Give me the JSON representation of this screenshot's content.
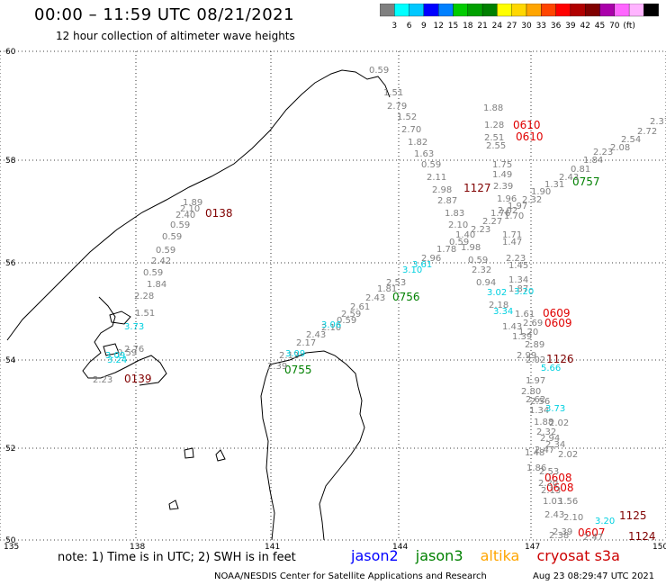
{
  "header": {
    "title": "00:00 – 11:59 UTC 08/21/2021",
    "subtitle": "12 hour collection of altimeter wave heights"
  },
  "colorbar": {
    "colors": [
      "#808080",
      "#00ffff",
      "#00c8ff",
      "#0000ff",
      "#0080ff",
      "#00cc00",
      "#00a000",
      "#008000",
      "#ffff00",
      "#ffd700",
      "#ffa500",
      "#ff4500",
      "#ff0000",
      "#b00000",
      "#800000",
      "#aa00aa",
      "#ff66ff",
      "#ffb4ff",
      "#000000"
    ],
    "labels": [
      "3",
      "6",
      "9",
      "12",
      "15",
      "18",
      "21",
      "24",
      "27",
      "30",
      "33",
      "36",
      "39",
      "42",
      "45",
      "70",
      "(ft)"
    ]
  },
  "map": {
    "lat_labels": [
      "60",
      "58",
      "56",
      "54",
      "52",
      "50"
    ],
    "lon_labels": [
      "135",
      "138",
      "141",
      "144",
      "147",
      "150"
    ],
    "colors": {
      "gray": "#808080",
      "cyan": "#00d0e0",
      "green": "#008000",
      "red": "#e00000",
      "darkred": "#800000"
    },
    "time_labels": [
      {
        "t": "0610",
        "c": "red"
      },
      {
        "t": "0610",
        "c": "red"
      },
      {
        "t": "1127",
        "c": "darkred"
      },
      {
        "t": "0757",
        "c": "green"
      },
      {
        "t": "0138",
        "c": "darkred"
      },
      {
        "t": "0756",
        "c": "green"
      },
      {
        "t": "0609",
        "c": "red"
      },
      {
        "t": "0609",
        "c": "red"
      },
      {
        "t": "1126",
        "c": "darkred"
      },
      {
        "t": "0755",
        "c": "green"
      },
      {
        "t": "0139",
        "c": "darkred"
      },
      {
        "t": "0608",
        "c": "red"
      },
      {
        "t": "0608",
        "c": "red"
      },
      {
        "t": "1125",
        "c": "darkred"
      },
      {
        "t": "0607",
        "c": "red"
      },
      {
        "t": "1124",
        "c": "darkred"
      }
    ],
    "values": [
      {
        "t": "0.59",
        "c": "gray"
      },
      {
        "t": "1.51",
        "c": "gray"
      },
      {
        "t": "2.79",
        "c": "gray"
      },
      {
        "t": "1.52",
        "c": "gray"
      },
      {
        "t": "2.70",
        "c": "gray"
      },
      {
        "t": "1.82",
        "c": "gray"
      },
      {
        "t": "1.63",
        "c": "gray"
      },
      {
        "t": "0.59",
        "c": "gray"
      },
      {
        "t": "2.11",
        "c": "gray"
      },
      {
        "t": "2.98",
        "c": "gray"
      },
      {
        "t": "2.87",
        "c": "gray"
      },
      {
        "t": "1.83",
        "c": "gray"
      },
      {
        "t": "2.10",
        "c": "gray"
      },
      {
        "t": "1.40",
        "c": "gray"
      },
      {
        "t": "0.59",
        "c": "gray"
      },
      {
        "t": "1.98",
        "c": "gray"
      },
      {
        "t": "1.78",
        "c": "gray"
      },
      {
        "t": "2.96",
        "c": "gray"
      },
      {
        "t": "0.59",
        "c": "gray"
      },
      {
        "t": "2.32",
        "c": "gray"
      },
      {
        "t": "0.94",
        "c": "gray"
      },
      {
        "t": "2.18",
        "c": "gray"
      },
      {
        "t": "1.88",
        "c": "gray"
      },
      {
        "t": "1.28",
        "c": "gray"
      },
      {
        "t": "2.51",
        "c": "gray"
      },
      {
        "t": "2.55",
        "c": "gray"
      },
      {
        "t": "1.75",
        "c": "gray"
      },
      {
        "t": "1.49",
        "c": "gray"
      },
      {
        "t": "2.39",
        "c": "gray"
      },
      {
        "t": "1.96",
        "c": "gray"
      },
      {
        "t": "2.02",
        "c": "gray"
      },
      {
        "t": "1.70",
        "c": "gray"
      },
      {
        "t": "1.71",
        "c": "gray"
      },
      {
        "t": "1.47",
        "c": "gray"
      },
      {
        "t": "2.23",
        "c": "gray"
      },
      {
        "t": "1.45",
        "c": "gray"
      },
      {
        "t": "1.34",
        "c": "gray"
      },
      {
        "t": "1.87",
        "c": "gray"
      },
      {
        "t": "1.61",
        "c": "gray"
      },
      {
        "t": "2.69",
        "c": "gray"
      },
      {
        "t": "1.43",
        "c": "gray"
      },
      {
        "t": "1.20",
        "c": "gray"
      },
      {
        "t": "1.39",
        "c": "gray"
      },
      {
        "t": "2.89",
        "c": "gray"
      },
      {
        "t": "2.99",
        "c": "gray"
      },
      {
        "t": "2.02",
        "c": "gray"
      },
      {
        "t": "1.97",
        "c": "gray"
      },
      {
        "t": "2.80",
        "c": "gray"
      },
      {
        "t": "2.62",
        "c": "gray"
      },
      {
        "t": "2.56",
        "c": "gray"
      },
      {
        "t": "1.34",
        "c": "gray"
      },
      {
        "t": "1.88",
        "c": "gray"
      },
      {
        "t": "2.02",
        "c": "gray"
      },
      {
        "t": "2.32",
        "c": "gray"
      },
      {
        "t": "2.94",
        "c": "gray"
      },
      {
        "t": "2.34",
        "c": "gray"
      },
      {
        "t": "2.47",
        "c": "gray"
      },
      {
        "t": "1.48",
        "c": "gray"
      },
      {
        "t": "2.02",
        "c": "gray"
      },
      {
        "t": "1.86",
        "c": "gray"
      },
      {
        "t": "2.53",
        "c": "gray"
      },
      {
        "t": "2.20",
        "c": "gray"
      },
      {
        "t": "2.13",
        "c": "gray"
      },
      {
        "t": "1.03",
        "c": "gray"
      },
      {
        "t": "1.56",
        "c": "gray"
      },
      {
        "t": "2.43",
        "c": "gray"
      },
      {
        "t": "2.10",
        "c": "gray"
      },
      {
        "t": "2.39",
        "c": "gray"
      },
      {
        "t": "2.38",
        "c": "gray"
      },
      {
        "t": "2.47",
        "c": "gray"
      },
      {
        "t": "2.37",
        "c": "gray"
      },
      {
        "t": "2.72",
        "c": "gray"
      },
      {
        "t": "2.54",
        "c": "gray"
      },
      {
        "t": "2.08",
        "c": "gray"
      },
      {
        "t": "2.23",
        "c": "gray"
      },
      {
        "t": "1.84",
        "c": "gray"
      },
      {
        "t": "0.81",
        "c": "gray"
      },
      {
        "t": "2.43",
        "c": "gray"
      },
      {
        "t": "1.31",
        "c": "gray"
      },
      {
        "t": "1.90",
        "c": "gray"
      },
      {
        "t": "2.32",
        "c": "gray"
      },
      {
        "t": "1.97",
        "c": "gray"
      },
      {
        "t": "1.76",
        "c": "gray"
      },
      {
        "t": "2.27",
        "c": "gray"
      },
      {
        "t": "2.23",
        "c": "gray"
      },
      {
        "t": "1.89",
        "c": "gray"
      },
      {
        "t": "2.40",
        "c": "gray"
      },
      {
        "t": "0.59",
        "c": "gray"
      },
      {
        "t": "0.59",
        "c": "gray"
      },
      {
        "t": "0.59",
        "c": "gray"
      },
      {
        "t": "2.42",
        "c": "gray"
      },
      {
        "t": "0.59",
        "c": "gray"
      },
      {
        "t": "1.84",
        "c": "gray"
      },
      {
        "t": "1.51",
        "c": "gray"
      },
      {
        "t": "2.76",
        "c": "gray"
      },
      {
        "t": "0.59",
        "c": "gray"
      },
      {
        "t": "2.23",
        "c": "gray"
      },
      {
        "t": "2.53",
        "c": "gray"
      },
      {
        "t": "1.81",
        "c": "gray"
      },
      {
        "t": "2.43",
        "c": "gray"
      },
      {
        "t": "2.61",
        "c": "gray"
      },
      {
        "t": "2.59",
        "c": "gray"
      },
      {
        "t": "0.59",
        "c": "gray"
      },
      {
        "t": "2.10",
        "c": "gray"
      },
      {
        "t": "2.43",
        "c": "gray"
      },
      {
        "t": "2.17",
        "c": "gray"
      },
      {
        "t": "2.12",
        "c": "gray"
      },
      {
        "t": "2.39",
        "c": "gray"
      },
      {
        "t": "2.10",
        "c": "gray"
      },
      {
        "t": "2.28",
        "c": "gray"
      },
      {
        "t": "3.73",
        "c": "cyan"
      },
      {
        "t": "3.24",
        "c": "cyan"
      },
      {
        "t": "3.09",
        "c": "cyan"
      },
      {
        "t": "3.61",
        "c": "cyan"
      },
      {
        "t": "3.10",
        "c": "cyan"
      },
      {
        "t": "3.06",
        "c": "cyan"
      },
      {
        "t": "3.34",
        "c": "cyan"
      },
      {
        "t": "3.02",
        "c": "cyan"
      },
      {
        "t": "3.20",
        "c": "cyan"
      },
      {
        "t": "5.66",
        "c": "cyan"
      },
      {
        "t": "3.73",
        "c": "cyan"
      },
      {
        "t": "3.20",
        "c": "cyan"
      },
      {
        "t": "3.09",
        "c": "cyan"
      },
      {
        "t": "3.31",
        "c": "cyan"
      },
      {
        "t": "3.71",
        "c": "cyan"
      }
    ]
  },
  "bottom": {
    "note": "note:  1) Time is in UTC; 2) SWH is in feet",
    "legend": [
      {
        "label": "jason2",
        "color": "#0000ff"
      },
      {
        "label": "jason3",
        "color": "#008000"
      },
      {
        "label": "altika",
        "color": "#ffa500"
      },
      {
        "label": "cryosat s3a",
        "color": "#cc0000"
      }
    ],
    "credit": "NOAA/NESDIS Center for Satellite Applications and Research",
    "timestamp": "Aug 23 08:29:47 UTC 2021"
  }
}
